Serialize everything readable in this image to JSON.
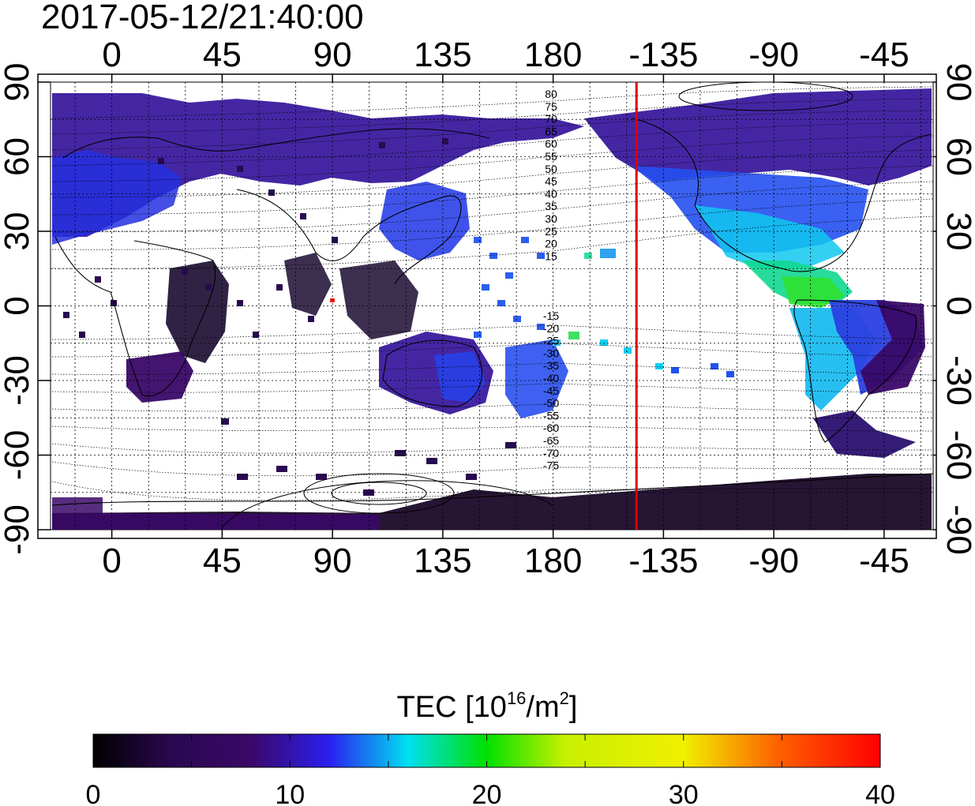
{
  "timestamp": "2017-05-12/21:40:00",
  "map": {
    "x_tick_labels": [
      "0",
      "45",
      "90",
      "135",
      "180",
      "-135",
      "-90",
      "-45"
    ],
    "y_tick_labels": [
      "90",
      "60",
      "30",
      "0",
      "-30",
      "-60",
      "-90"
    ],
    "contour_labels_north": [
      "80",
      "75",
      "70",
      "65",
      "60",
      "55",
      "50",
      "45",
      "40",
      "35",
      "30",
      "25",
      "20",
      "15"
    ],
    "contour_labels_south": [
      "-15",
      "-20",
      "-25",
      "-30",
      "-35",
      "-40",
      "-45",
      "-50",
      "-55",
      "-60",
      "-65",
      "-70",
      "-75"
    ],
    "terminator_longitude": -146,
    "terminator_color": "#e00000"
  },
  "colorbar": {
    "title_main": "TEC  [10",
    "title_sup1": "16",
    "title_mid": "/m",
    "title_sup2": "2",
    "title_end": "]",
    "range": [
      0,
      40
    ],
    "tick_labels": [
      "0",
      "10",
      "20",
      "30",
      "40"
    ],
    "colormap_stops": [
      "#000000",
      "#3a0868",
      "#2b1ff0",
      "#00e0f0",
      "#00e000",
      "#f0f000",
      "#ff6000",
      "#ff0000"
    ]
  }
}
